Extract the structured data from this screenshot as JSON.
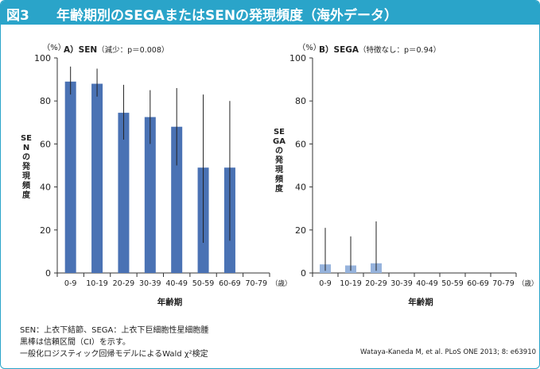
{
  "header": {
    "label": "図3",
    "title": "年齢期別のSEGAまたはSENの発現頻度（海外データ）"
  },
  "colors": {
    "header_bg": "#2aa4c9",
    "left_bar": "#4a72b4",
    "right_bar": "#96b3dc",
    "error_bar": "#222222",
    "grid": "#d9d9d9"
  },
  "chart_data": [
    {
      "type": "bar",
      "panel_label": "A）SEN",
      "stat_note": "（減少：p＝0.008）",
      "title": "A）SEN（減少：p＝0.008）",
      "ylabel_unit": "（%）",
      "ylabel": "SENの発現頻度",
      "xlabel": "年齢期",
      "x_unit": "（歳）",
      "ylim": [
        0,
        100
      ],
      "yticks": [
        0,
        20,
        40,
        60,
        80,
        100
      ],
      "grid": false,
      "categories": [
        "0-9",
        "10-19",
        "20-29",
        "30-39",
        "40-49",
        "50-59",
        "60-69",
        "70-79"
      ],
      "values": [
        89,
        88,
        74.5,
        72.5,
        68,
        49,
        49,
        null
      ],
      "error_low": [
        83,
        82,
        62,
        60,
        50,
        14,
        15,
        null
      ],
      "error_high": [
        96,
        95,
        87.5,
        85,
        86,
        83,
        80,
        null
      ]
    },
    {
      "type": "bar",
      "panel_label": "B）SEGA",
      "stat_note": "（特徴なし：p＝0.94）",
      "title": "B）SEGA（特徴なし：p＝0.94）",
      "ylabel_unit": "（%）",
      "ylabel": "SEGAの発現頻度",
      "xlabel": "年齢期",
      "x_unit": "（歳）",
      "ylim": [
        0,
        100
      ],
      "yticks": [
        0,
        20,
        40,
        60,
        80,
        100
      ],
      "grid": false,
      "categories": [
        "0-9",
        "10-19",
        "20-29",
        "30-39",
        "40-49",
        "50-59",
        "60-69",
        "70-79"
      ],
      "values": [
        4,
        3.5,
        4.5,
        null,
        null,
        null,
        null,
        null
      ],
      "error_low": [
        1,
        1,
        1,
        null,
        null,
        null,
        null,
        null
      ],
      "error_high": [
        21,
        17,
        24,
        null,
        null,
        null,
        null,
        null
      ]
    }
  ],
  "notes": {
    "line1": "SEN：上衣下結節、SEGA：上衣下巨細胞性星細胞腫",
    "line2": "黒棒は信頼区間（CI）を示す。",
    "line3": "一般化ロジスティック回帰モデルによるWald χ²検定"
  },
  "source": "Wataya-Kaneda M, et al. PLoS ONE 2013; 8: e63910"
}
